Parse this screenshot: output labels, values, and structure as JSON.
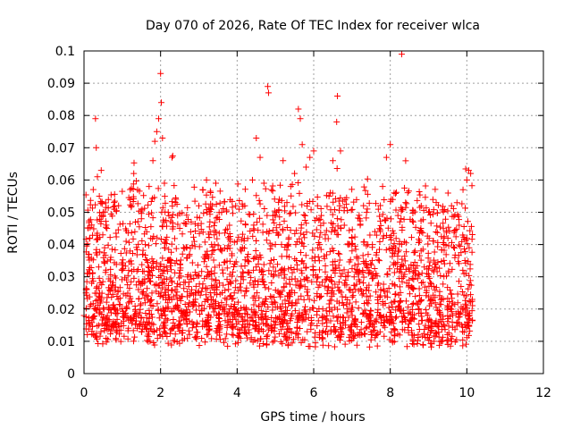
{
  "chart_data": {
    "type": "scatter",
    "title": "Day 070 of 2026, Rate Of TEC Index for receiver wlca",
    "xlabel": "GPS time / hours",
    "ylabel": "ROTI / TECUs",
    "xlim": [
      0,
      12
    ],
    "ylim": [
      0,
      0.1
    ],
    "xticks": [
      "0",
      "2",
      "4",
      "6",
      "8",
      "10",
      "12"
    ],
    "yticks": [
      "0",
      "0.01",
      "0.02",
      "0.03",
      "0.04",
      "0.05",
      "0.06",
      "0.07",
      "0.08",
      "0.09",
      "0.1"
    ],
    "grid": true,
    "marker": "+",
    "color": "#ff0000",
    "series": [
      {
        "values_note_excluded": true,
        "points": [
          [
            0.0,
            0.018
          ],
          [
            0.05,
            0.025
          ],
          [
            0.1,
            0.031
          ],
          [
            0.12,
            0.037
          ],
          [
            0.15,
            0.042
          ],
          [
            0.2,
            0.028
          ],
          [
            0.25,
            0.012
          ],
          [
            0.3,
            0.079
          ],
          [
            0.32,
            0.07
          ],
          [
            0.35,
            0.061
          ],
          [
            0.4,
            0.055
          ],
          [
            0.45,
            0.063
          ],
          [
            0.5,
            0.05
          ],
          [
            0.6,
            0.045
          ],
          [
            0.7,
            0.036
          ],
          [
            0.8,
            0.02
          ],
          [
            0.9,
            0.015
          ],
          [
            1.0,
            0.032
          ],
          [
            1.1,
            0.041
          ],
          [
            1.2,
            0.038
          ],
          [
            1.3,
            0.062
          ],
          [
            1.4,
            0.057
          ],
          [
            1.5,
            0.048
          ],
          [
            1.6,
            0.04
          ],
          [
            1.7,
            0.058
          ],
          [
            1.8,
            0.066
          ],
          [
            1.85,
            0.072
          ],
          [
            1.9,
            0.075
          ],
          [
            1.95,
            0.079
          ],
          [
            2.0,
            0.093
          ],
          [
            2.02,
            0.084
          ],
          [
            2.05,
            0.073
          ],
          [
            2.1,
            0.059
          ],
          [
            2.2,
            0.05
          ],
          [
            2.3,
            0.067
          ],
          [
            2.4,
            0.054
          ],
          [
            2.5,
            0.045
          ],
          [
            2.6,
            0.039
          ],
          [
            2.8,
            0.047
          ],
          [
            3.0,
            0.052
          ],
          [
            3.1,
            0.057
          ],
          [
            3.2,
            0.06
          ],
          [
            3.3,
            0.051
          ],
          [
            3.4,
            0.043
          ],
          [
            3.6,
            0.038
          ],
          [
            3.8,
            0.046
          ],
          [
            4.0,
            0.041
          ],
          [
            4.2,
            0.052
          ],
          [
            4.4,
            0.06
          ],
          [
            4.5,
            0.073
          ],
          [
            4.6,
            0.067
          ],
          [
            4.7,
            0.059
          ],
          [
            4.8,
            0.089
          ],
          [
            4.82,
            0.087
          ],
          [
            4.9,
            0.057
          ],
          [
            5.0,
            0.049
          ],
          [
            5.1,
            0.054
          ],
          [
            5.2,
            0.066
          ],
          [
            5.3,
            0.053
          ],
          [
            5.4,
            0.058
          ],
          [
            5.5,
            0.062
          ],
          [
            5.6,
            0.082
          ],
          [
            5.65,
            0.079
          ],
          [
            5.7,
            0.071
          ],
          [
            5.8,
            0.064
          ],
          [
            5.9,
            0.067
          ],
          [
            6.0,
            0.069
          ],
          [
            6.1,
            0.052
          ],
          [
            6.2,
            0.049
          ],
          [
            6.3,
            0.043
          ],
          [
            6.4,
            0.055
          ],
          [
            6.5,
            0.066
          ],
          [
            6.6,
            0.078
          ],
          [
            6.62,
            0.086
          ],
          [
            6.7,
            0.069
          ],
          [
            6.8,
            0.046
          ],
          [
            7.0,
            0.042
          ],
          [
            7.2,
            0.048
          ],
          [
            7.4,
            0.051
          ],
          [
            7.6,
            0.044
          ],
          [
            7.8,
            0.058
          ],
          [
            7.9,
            0.067
          ],
          [
            8.0,
            0.071
          ],
          [
            8.1,
            0.056
          ],
          [
            8.2,
            0.049
          ],
          [
            8.3,
            0.099
          ],
          [
            8.4,
            0.053
          ],
          [
            8.6,
            0.047
          ],
          [
            8.8,
            0.045
          ],
          [
            9.0,
            0.05
          ],
          [
            9.2,
            0.053
          ],
          [
            9.4,
            0.042
          ],
          [
            9.6,
            0.052
          ],
          [
            9.8,
            0.046
          ],
          [
            9.9,
            0.057
          ],
          [
            10.0,
            0.06
          ],
          [
            10.05,
            0.063
          ],
          [
            10.1,
            0.062
          ]
        ]
      }
    ]
  }
}
